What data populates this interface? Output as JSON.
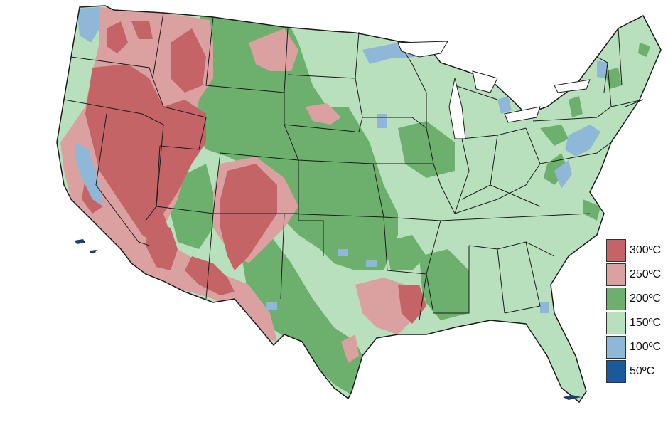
{
  "legend": {
    "items": [
      {
        "label": "300ºC",
        "color": "#c46466"
      },
      {
        "label": "250ºC",
        "color": "#dba0a0"
      },
      {
        "label": "200ºC",
        "color": "#6db06d"
      },
      {
        "label": "150ºC",
        "color": "#b9e0bd"
      },
      {
        "label": "100ºC",
        "color": "#8fb8d8"
      },
      {
        "label": "50ºC",
        "color": "#1a5a9c"
      }
    ]
  },
  "colors": {
    "background": "#ffffff",
    "border": "#1a1a1a",
    "ocean_islands": "#1a3f6c"
  }
}
